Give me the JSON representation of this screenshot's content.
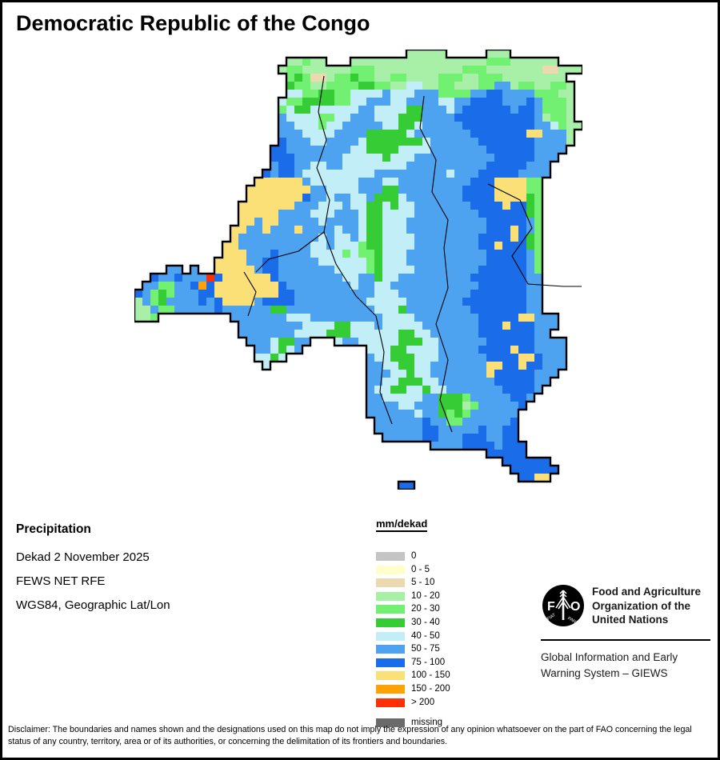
{
  "title": "Democratic Republic of the Congo",
  "info": {
    "heading": "Precipitation",
    "line1": "Dekad 2 November 2025",
    "line2": "FEWS NET RFE",
    "line3": "WGS84, Geographic Lat/Lon"
  },
  "legend": {
    "title": "mm/dekad",
    "entries": [
      {
        "label": "0",
        "color": "#c4c4c4"
      },
      {
        "label": "0 - 5",
        "color": "#ffffcc"
      },
      {
        "label": "5 - 10",
        "color": "#ecd9b0"
      },
      {
        "label": "10 - 20",
        "color": "#a8f0a8"
      },
      {
        "label": "20 - 30",
        "color": "#72f072"
      },
      {
        "label": "30 - 40",
        "color": "#35cc35"
      },
      {
        "label": "40 - 50",
        "color": "#c2eef8"
      },
      {
        "label": "50 - 75",
        "color": "#4da3f0"
      },
      {
        "label": "75 - 100",
        "color": "#1b6ce8"
      },
      {
        "label": "100 - 150",
        "color": "#fbdf77"
      },
      {
        "label": "150 - 200",
        "color": "#ffa203"
      },
      {
        "label": "> 200",
        "color": "#ff2f08"
      }
    ],
    "missing_entry": {
      "label": "missing",
      "color": "#6a6a6a"
    }
  },
  "fao": {
    "logo_letters_left": "F",
    "logo_letters_right": "O",
    "logo_motto_left": "FIAT",
    "logo_motto_right": "PANIS",
    "org_lines": [
      "Food and Agriculture",
      "Organization of the",
      "United Nations"
    ],
    "giews_lines": [
      "Global Information and Early",
      "Warning System – GIEWS"
    ]
  },
  "disclaimer": "Disclaimer: The boundaries and names shown and the designations used on this map do not imply the expression of any opinion whatsoever on the part of FAO concerning the legal status of any country, territory, area or of its authorities, or concerning the delimitation of its frontiers and boundaries.",
  "map": {
    "cell_size": 10,
    "palette": {
      "a": "#c4c4c4",
      "b": "#ffffcc",
      "c": "#ecd9b0",
      "d": "#a8f0a8",
      "e": "#72f072",
      "f": "#35cc35",
      "g": "#c2eef8",
      "h": "#4da3f0",
      "i": "#1b6ce8",
      "j": "#fbdf77",
      "k": "#ffa203",
      "l": "#ff2f08",
      "m": "#6a6a6a"
    },
    "rows": [
      "..................................ddddd.....ddd.........",
      "...................ddedd...dddddddddddddddddeeedddddd...",
      "..................deeddddddeeedddddddddddeeedddddddccddd..",
      "...................efeccdeefeeddeeddddeeeddeeedddddddd.",
      "...................feeddeeeeffeeddggddeedddeehhdeeddeed.",
      "...................ggeeffeegggghggghhheeeehhiihhhheeedd.",
      "..................geeffffeegghhhgghhhhgghhiiiihhhiheeed.",
      "..................egffgggggghhggggffhhhghiiiiiihiiheeed.",
      "..................hggggeegghhhgggfffhhhhiiiiiiiiiihdeed.",
      "..................hhgggegghhhhhggffghhhhhiiiiiiiiihhgedd",
      "..................hhhgggghhhhfffffghhhhhhhiiiiiiijjhhhd.",
      "..................ihhhgghhhhgfffffffghhhhhhiiiiiiihhhhd.",
      ".................iihhhhhhhhggffffgggghhhhhhhiiiiiihhhh..",
      ".................iiihhhhhhgggggfggghhhhhhhhhhiiiiihhh...",
      ".................hiihhgghhgggggggghhhhhhhhhhiiiiihhh....",
      "................ihiihggggggggghhhhhhhhhghhhiiiiihhhh....",
      "...............jjjjjjhgggggghhhgghhhhhhhhhiiijjjjee.....",
      "..............jjjjjjjjhhgggghhhffhhhhhhhhiiiijjjjee.....",
      "..............jjjjjjjihhghhgghfffghhhhhhhiiiijjjjfe.....",
      ".............jjjjjjjhhhggghggffgfgghhhhhhhiiiijiife.....",
      ".............jjjjjhhhhggghhhgffgggghhhhhhhhiiiiiife.....",
      ".............jjhjjhhhhhghhhhgffggghhhhhhhhhhiiiiihe.....",
      "............jjhhjhhhjhhhhghhgffggghhhhhhhhhhiiijihe.....",
      "............jhhhhhhhhhhghgghgffgggghhhhhhhhiiiijife.....",
      "...........jjhhhhhhhhhgghgggeffgggghhhhhhhhiijiiife.....",
      "...........jjjhhhihhhhggggegeefggghhhhhhhhhhiiiiihe.....",
      "..........jjjjhhiihhhhhggggggefggghhhhhhhhhhiiiiihe.....",
      "....hh.h..jjjjjhiihhhhhhhggggefgggghhhhhhhhiiiiiihe.....",
      "..ihhihhhlijjjjjjihhhhhhhhgghhfgghhhhhhhhhiiiiiiihh.....",
      ".hheehhikijjjjjjjjihhhhhhhhghhgghhhhhhhhhhhiiiiiihh.....",
      "ihefehhhiijjjjjjjjiihhhhhhhhhhggghhhhhhhhhiiiiiiihh.....",
      "dhefhhhhihijjjjhiiiihhhhhhhhhggggghhhhhhhiiiiiiiihh.....",
      "ddheehhhhhihhhhhhffhhhhhhhhhhhgggfhhhhhhhhiiiiiiihh.....",
      "dde.........hhhhhhhggghhhhhhhhhgggghhhhhhhhiiiiijjhhh....",
      ".............hhhhhhhhggggffggghggggghhhhhhhiiijiiihhh...",
      ".............hhhhhhhggggfffggggggffgghhhhhhiiiiiiihh...",
      "..............hhhgffhh...ghhgggggfffgghhhhhhiiiiiihhhh..",
      "...............hhgfgh........gggffgggghhhhhiiiijiihhhh..",
      "...............ggfg..........hggfffggghhhhhhiiiijjihhh..",
      "................g............hhggffgghhhhhhhjjiijiihhh..",
      ".............................hhhggfgghhhhhhhjiiiiihhh...",
      ".............................hhggfffgghhhhhhhiiiiihh....",
      ".............................hggffggfgghhhhhhhiiiih.....",
      ".............................hhggggghhfffehhhhhiih......",
      ".............................hhhhgghhhfffdehhhhhi.......",
      ".............................hhhhhhghhfefehhhhhh........",
      "..............................hhhhhhihheehhhhhhi........",
      "..............................hhhhhhiihhhhhihhii........",
      "...............................hhhhhiihhhiiihhii........",
      ".....................................hhhhiiiihiii.......",
      "............................................iiiii.......",
      "..............................................iiiiii....",
      "...............................................iiiiii...",
      "................................................iijj....",
      ".................................ii....................."
    ],
    "province_lines": [
      [
        [
          237,
          33
        ],
        [
          230,
          78
        ],
        [
          240,
          113
        ],
        [
          228,
          148
        ],
        [
          244,
          188
        ],
        [
          237,
          228
        ],
        [
          252,
          268
        ],
        [
          277,
          308
        ],
        [
          302,
          333
        ]
      ],
      [
        [
          362,
          58
        ],
        [
          357,
          98
        ],
        [
          377,
          138
        ],
        [
          372,
          178
        ],
        [
          392,
          213
        ],
        [
          387,
          248
        ]
      ],
      [
        [
          442,
          168
        ],
        [
          482,
          188
        ],
        [
          497,
          223
        ],
        [
          472,
          258
        ],
        [
          492,
          293
        ],
        [
          536,
          296
        ]
      ],
      [
        [
          302,
          333
        ],
        [
          312,
          378
        ],
        [
          307,
          428
        ],
        [
          322,
          468
        ]
      ],
      [
        [
          387,
          248
        ],
        [
          392,
          298
        ],
        [
          377,
          343
        ],
        [
          392,
          388
        ],
        [
          382,
          438
        ],
        [
          397,
          478
        ]
      ],
      [
        [
          137,
          278
        ],
        [
          152,
          303
        ],
        [
          142,
          333
        ]
      ],
      [
        [
          536,
          296
        ],
        [
          559,
          296
        ]
      ],
      [
        [
          237,
          228
        ],
        [
          205,
          252
        ],
        [
          168,
          262
        ],
        [
          152,
          278
        ]
      ]
    ]
  }
}
